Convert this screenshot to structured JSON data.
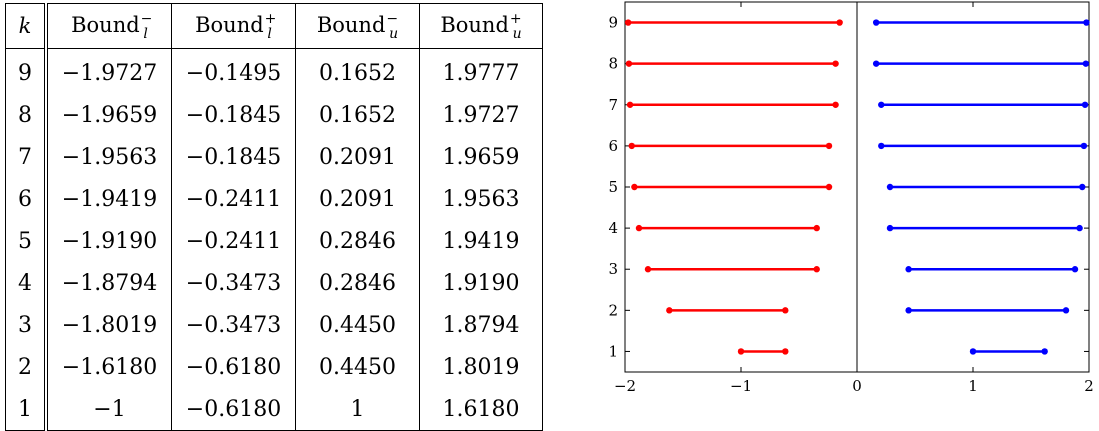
{
  "table": {
    "header": {
      "k": "k",
      "cols": [
        {
          "name": "Bound",
          "sup": "−",
          "sub": "l"
        },
        {
          "name": "Bound",
          "sup": "+",
          "sub": "l"
        },
        {
          "name": "Bound",
          "sup": "−",
          "sub": "u"
        },
        {
          "name": "Bound",
          "sup": "+",
          "sub": "u"
        }
      ]
    },
    "rows": [
      {
        "k": "9",
        "v": [
          "−1.9727",
          "−0.1495",
          "0.1652",
          "1.9777"
        ]
      },
      {
        "k": "8",
        "v": [
          "−1.9659",
          "−0.1845",
          "0.1652",
          "1.9727"
        ]
      },
      {
        "k": "7",
        "v": [
          "−1.9563",
          "−0.1845",
          "0.2091",
          "1.9659"
        ]
      },
      {
        "k": "6",
        "v": [
          "−1.9419",
          "−0.2411",
          "0.2091",
          "1.9563"
        ]
      },
      {
        "k": "5",
        "v": [
          "−1.9190",
          "−0.2411",
          "0.2846",
          "1.9419"
        ]
      },
      {
        "k": "4",
        "v": [
          "−1.8794",
          "−0.3473",
          "0.2846",
          "1.9190"
        ]
      },
      {
        "k": "3",
        "v": [
          "−1.8019",
          "−0.3473",
          "0.4450",
          "1.8794"
        ]
      },
      {
        "k": "2",
        "v": [
          "−1.6180",
          "−0.6180",
          "0.4450",
          "1.8019"
        ]
      },
      {
        "k": "1",
        "v": [
          "−1",
          "−0.6180",
          "1",
          "1.6180"
        ]
      }
    ]
  },
  "chart_data": {
    "type": "interval",
    "title": "",
    "xlabel": "",
    "ylabel": "",
    "xlim": [
      -2,
      2
    ],
    "ylim": [
      0.5,
      9.5
    ],
    "x_ticks": [
      -2,
      -1,
      0,
      1,
      2
    ],
    "x_tick_labels": [
      "−2",
      "−1",
      "0",
      "1",
      "2"
    ],
    "y_ticks": [
      1,
      2,
      3,
      4,
      5,
      6,
      7,
      8,
      9
    ],
    "vertical_line_at": 0,
    "grid": false,
    "series": [
      {
        "color": "#ff0000",
        "k": [
          9,
          8,
          7,
          6,
          5,
          4,
          3,
          2,
          1
        ],
        "lower": [
          -1.9727,
          -1.9659,
          -1.9563,
          -1.9419,
          -1.919,
          -1.8794,
          -1.8019,
          -1.618,
          -1.0
        ],
        "upper": [
          -0.1495,
          -0.1845,
          -0.1845,
          -0.2411,
          -0.2411,
          -0.3473,
          -0.3473,
          -0.618,
          -0.618
        ]
      },
      {
        "color": "#0000ff",
        "k": [
          9,
          8,
          7,
          6,
          5,
          4,
          3,
          2,
          1
        ],
        "lower": [
          0.1652,
          0.1652,
          0.2091,
          0.2091,
          0.2846,
          0.2846,
          0.445,
          0.445,
          1.0
        ],
        "upper": [
          1.9777,
          1.9727,
          1.9659,
          1.9563,
          1.9419,
          1.919,
          1.8794,
          1.8019,
          1.618
        ]
      }
    ]
  }
}
